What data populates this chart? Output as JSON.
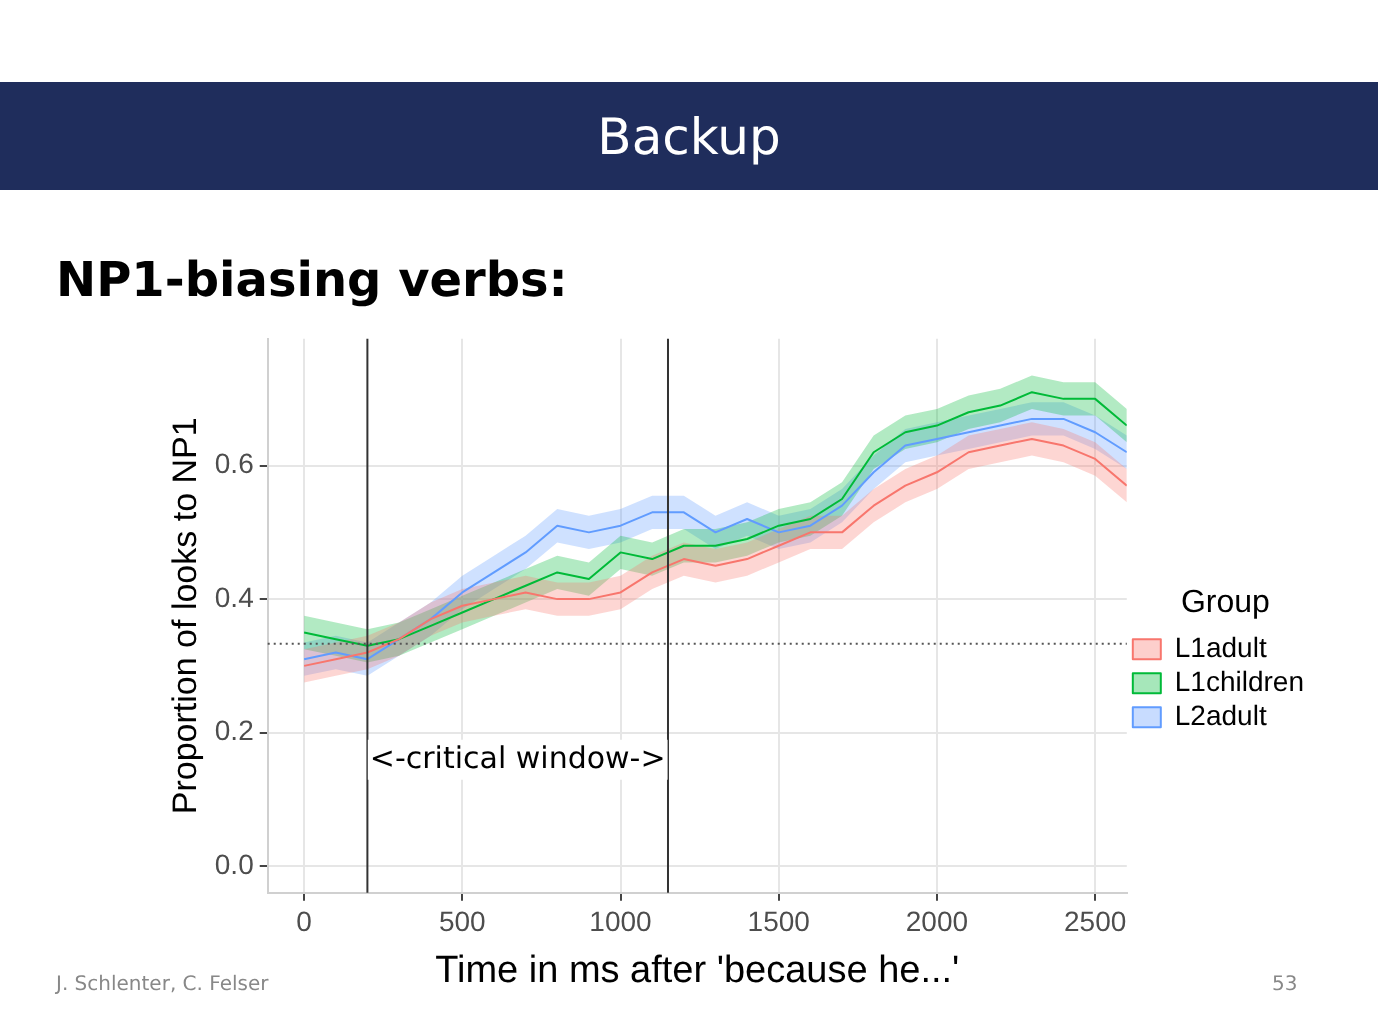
{
  "chart_data": {
    "type": "line",
    "title": "Backup",
    "subtitle": "NP1-biasing verbs:",
    "xlabel": "Time in ms after 'because he...'",
    "ylabel": "Proportion of looks to NP1",
    "legend_title": "Group",
    "legend": "right",
    "grid": true,
    "marker": "none",
    "line_style": "solid",
    "x": [
      0,
      100,
      200,
      300,
      400,
      500,
      600,
      700,
      800,
      900,
      1000,
      1100,
      1200,
      1300,
      1400,
      1500,
      1600,
      1700,
      1800,
      1900,
      2000,
      2100,
      2200,
      2300,
      2400,
      2500,
      2600
    ],
    "xlim": [
      -115,
      2600
    ],
    "xticks": [
      0,
      500,
      1000,
      1500,
      2000,
      2500
    ],
    "ylim": [
      -0.04,
      0.79
    ],
    "yticks": [
      {
        "value": 0,
        "label": "0.0"
      },
      {
        "value": 0.2,
        "label": "0.2"
      },
      {
        "value": 0.4,
        "label": "0.4"
      },
      {
        "value": 0.6,
        "label": "0.6"
      }
    ],
    "series": [
      {
        "name": "L1adult",
        "color": "#f8766d",
        "values": [
          0.3,
          0.31,
          0.32,
          0.34,
          0.37,
          0.39,
          0.4,
          0.41,
          0.4,
          0.4,
          0.41,
          0.44,
          0.46,
          0.45,
          0.46,
          0.48,
          0.5,
          0.5,
          0.54,
          0.57,
          0.59,
          0.62,
          0.63,
          0.64,
          0.63,
          0.61,
          0.57
        ],
        "lower": [
          0.275,
          0.285,
          0.295,
          0.315,
          0.345,
          0.365,
          0.375,
          0.385,
          0.375,
          0.375,
          0.385,
          0.415,
          0.435,
          0.425,
          0.435,
          0.455,
          0.475,
          0.475,
          0.515,
          0.545,
          0.565,
          0.595,
          0.605,
          0.615,
          0.605,
          0.585,
          0.545
        ],
        "upper": [
          0.325,
          0.335,
          0.345,
          0.365,
          0.395,
          0.415,
          0.425,
          0.435,
          0.425,
          0.425,
          0.435,
          0.465,
          0.485,
          0.475,
          0.485,
          0.505,
          0.525,
          0.525,
          0.565,
          0.595,
          0.615,
          0.645,
          0.655,
          0.665,
          0.655,
          0.635,
          0.595
        ]
      },
      {
        "name": "L1children",
        "color": "#00ba38",
        "values": [
          0.35,
          0.34,
          0.33,
          0.34,
          0.36,
          0.38,
          0.4,
          0.42,
          0.44,
          0.43,
          0.47,
          0.46,
          0.48,
          0.48,
          0.49,
          0.51,
          0.52,
          0.55,
          0.62,
          0.65,
          0.66,
          0.68,
          0.69,
          0.71,
          0.7,
          0.7,
          0.66
        ],
        "lower": [
          0.325,
          0.315,
          0.305,
          0.315,
          0.335,
          0.355,
          0.375,
          0.395,
          0.415,
          0.405,
          0.445,
          0.435,
          0.455,
          0.455,
          0.465,
          0.485,
          0.495,
          0.525,
          0.595,
          0.625,
          0.635,
          0.655,
          0.665,
          0.685,
          0.675,
          0.675,
          0.635
        ],
        "upper": [
          0.375,
          0.365,
          0.355,
          0.365,
          0.385,
          0.405,
          0.425,
          0.445,
          0.465,
          0.455,
          0.495,
          0.485,
          0.505,
          0.505,
          0.515,
          0.535,
          0.545,
          0.575,
          0.645,
          0.675,
          0.685,
          0.705,
          0.715,
          0.735,
          0.725,
          0.725,
          0.685
        ]
      },
      {
        "name": "L2adult",
        "color": "#619cff",
        "values": [
          0.31,
          0.32,
          0.31,
          0.34,
          0.37,
          0.41,
          0.44,
          0.47,
          0.51,
          0.5,
          0.51,
          0.53,
          0.53,
          0.5,
          0.52,
          0.5,
          0.51,
          0.54,
          0.59,
          0.63,
          0.64,
          0.65,
          0.66,
          0.67,
          0.67,
          0.65,
          0.62
        ],
        "lower": [
          0.285,
          0.295,
          0.285,
          0.315,
          0.345,
          0.385,
          0.415,
          0.445,
          0.485,
          0.475,
          0.485,
          0.505,
          0.505,
          0.475,
          0.495,
          0.475,
          0.485,
          0.515,
          0.565,
          0.605,
          0.615,
          0.625,
          0.635,
          0.645,
          0.645,
          0.625,
          0.595
        ],
        "upper": [
          0.335,
          0.345,
          0.335,
          0.365,
          0.395,
          0.435,
          0.465,
          0.495,
          0.535,
          0.525,
          0.535,
          0.555,
          0.555,
          0.525,
          0.545,
          0.525,
          0.535,
          0.565,
          0.615,
          0.655,
          0.665,
          0.675,
          0.685,
          0.695,
          0.695,
          0.675,
          0.645
        ]
      }
    ],
    "ref_lines": [
      {
        "axis": "x",
        "value": 200,
        "color": "#333333",
        "line_style": "solid"
      },
      {
        "axis": "x",
        "value": 1150,
        "color": "#333333",
        "line_style": "solid"
      },
      {
        "axis": "y",
        "value": 0.333,
        "color": "#555555",
        "line_style": "dotted"
      }
    ],
    "annotations": [
      "<-critical window->",
      "J. Schlenter, C. Felser",
      "53"
    ]
  }
}
